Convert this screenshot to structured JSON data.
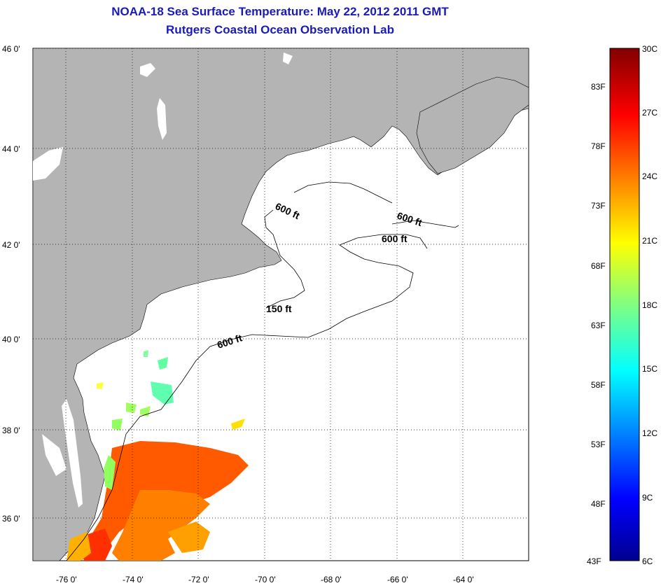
{
  "title": {
    "line1": "NOAA-18 Sea Surface Temperature:  May 22, 2012 2011 GMT",
    "line2": "Rutgers Coastal Ocean Observation Lab"
  },
  "map": {
    "lon_range": [
      -77.0,
      -62.0
    ],
    "lat_range": [
      35.0,
      46.0
    ],
    "lon_ticks": [
      "-76 0'",
      "-74 0'",
      "-72 0'",
      "-70 0'",
      "-68 0'",
      "-66 0'",
      "-64 0'"
    ],
    "lat_ticks": [
      "46 0'",
      "44 0'",
      "42 0'",
      "40 0'",
      "38 0'",
      "36 0'"
    ],
    "grid": "dotted",
    "land_color": "#b4b4b4",
    "ocean_color": "#ffffff",
    "contour_labels": [
      {
        "text": "600 ft",
        "lon": -70.1,
        "lat": 42.7
      },
      {
        "text": "600 ft",
        "lon": -66.5,
        "lat": 42.45
      },
      {
        "text": "600 ft",
        "lon": -66.7,
        "lat": 42.05
      },
      {
        "text": "150 ft",
        "lon": -70.7,
        "lat": 40.6
      },
      {
        "text": "600 ft",
        "lon": -71.7,
        "lat": 39.9
      }
    ]
  },
  "colorbar": {
    "f_labels": [
      "83F",
      "78F",
      "73F",
      "68F",
      "63F",
      "58F",
      "53F",
      "48F",
      "43F"
    ],
    "c_labels": [
      "30C",
      "27C",
      "24C",
      "21C",
      "18C",
      "15C",
      "12C",
      "9C",
      "6C"
    ],
    "min_c": 6,
    "max_c": 30
  }
}
